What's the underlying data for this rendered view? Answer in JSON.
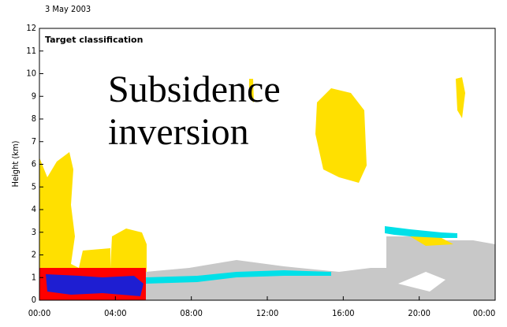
{
  "chart_data": {
    "type": "time-height",
    "date": "3 May 2003",
    "title": "Target classification",
    "annotation": [
      "Subsidence",
      "inversion"
    ],
    "y_label": "Height (km)",
    "ylim": [
      0,
      12
    ],
    "yticks": [
      0,
      1,
      2,
      3,
      4,
      5,
      6,
      7,
      8,
      9,
      10,
      11,
      12
    ],
    "xlim": [
      0,
      24
    ],
    "xticks": [
      {
        "value": 0,
        "label": "00:00"
      },
      {
        "value": 4,
        "label": "04:00"
      },
      {
        "value": 8,
        "label": "08:00"
      },
      {
        "value": 12,
        "label": "12:00"
      },
      {
        "value": 16,
        "label": "16:00"
      },
      {
        "value": 20,
        "label": "20:00"
      },
      {
        "value": 24,
        "label": "00:00"
      }
    ]
  }
}
